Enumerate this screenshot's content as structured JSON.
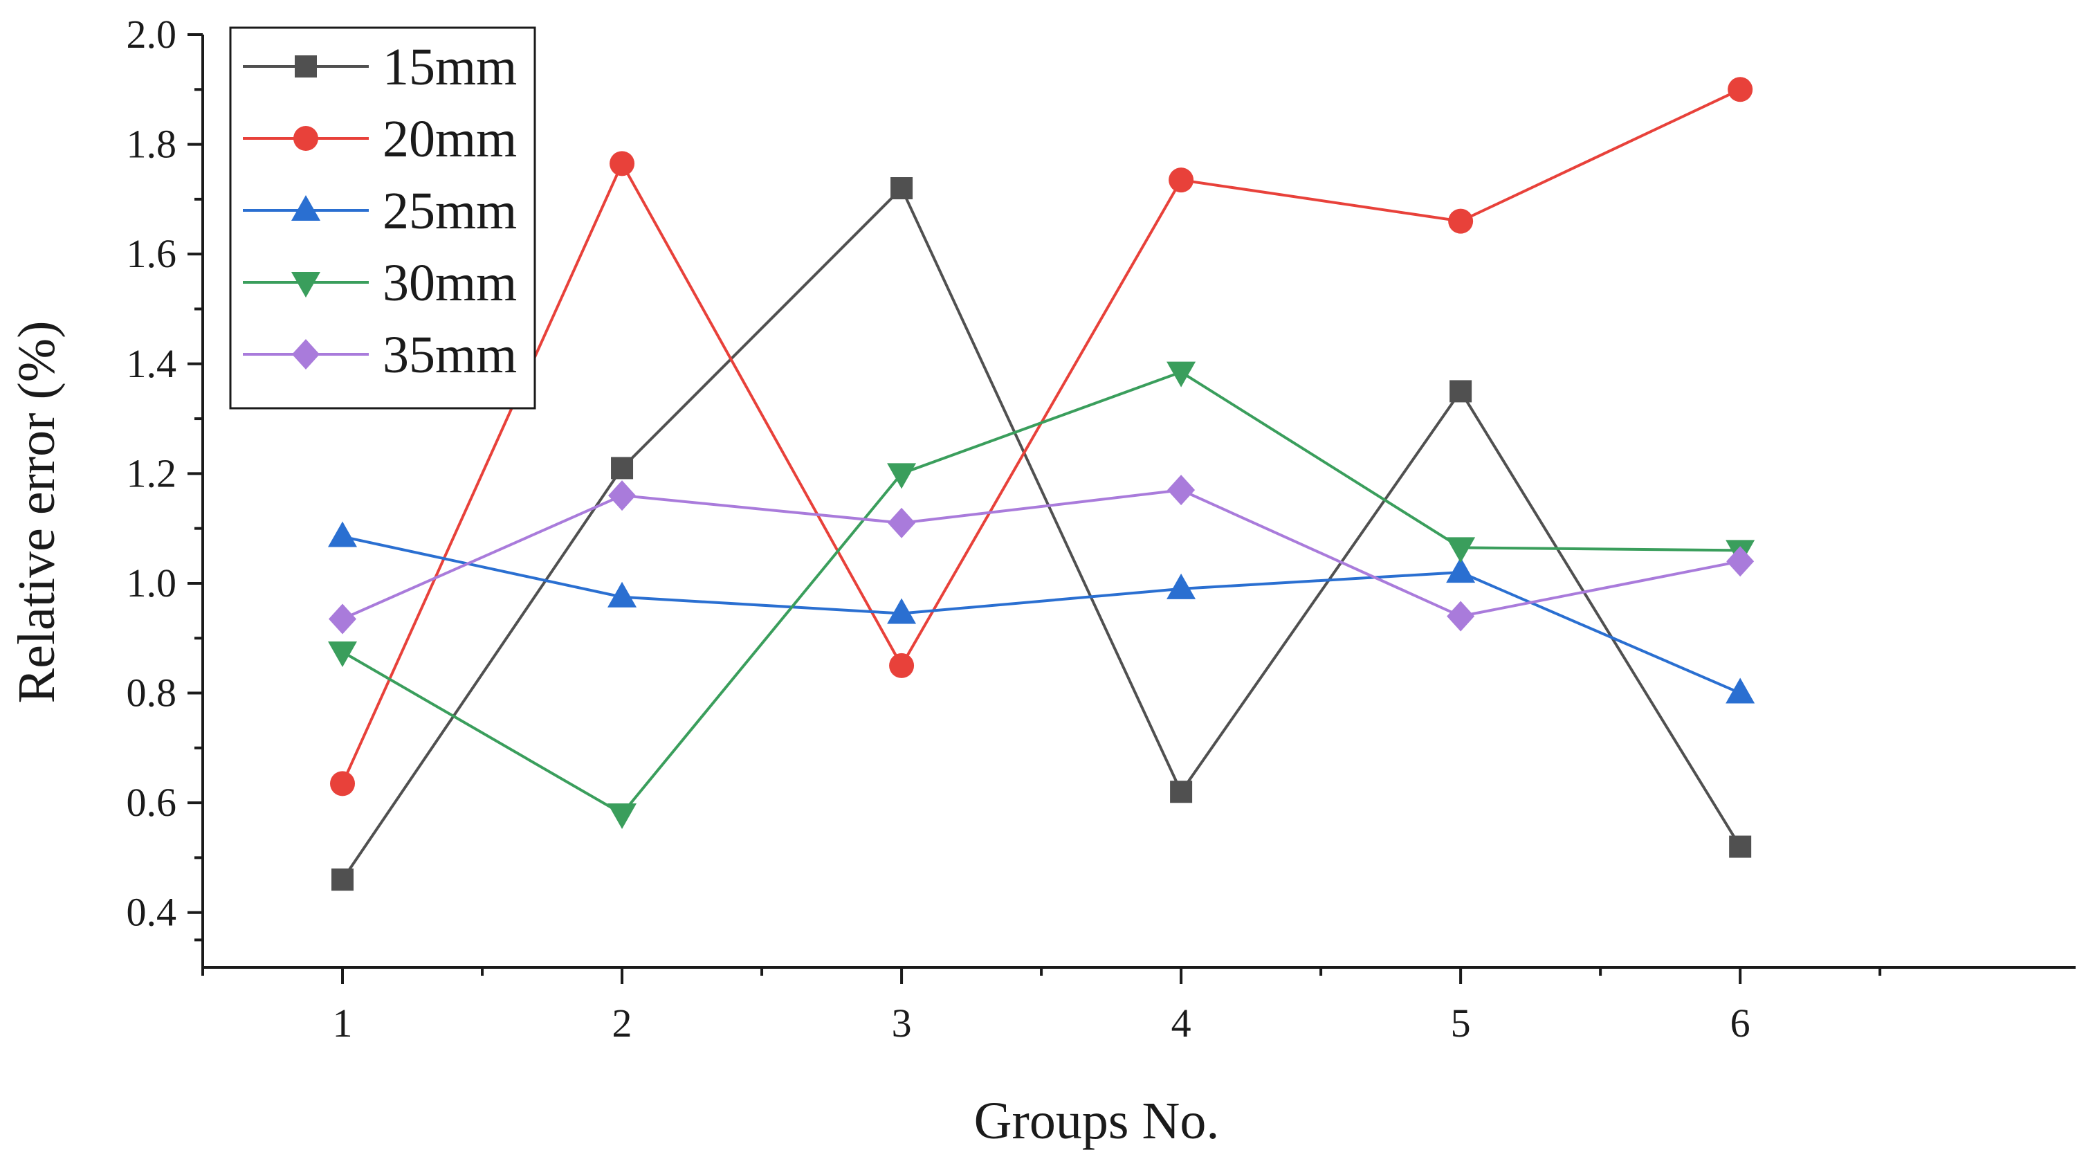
{
  "chart_data": {
    "type": "line",
    "title": "",
    "xlabel": "Groups No.",
    "ylabel": "Relative error (%)",
    "x": [
      1,
      2,
      3,
      4,
      5,
      6
    ],
    "x_tick_labels": [
      "1",
      "2",
      "3",
      "4",
      "5",
      "6"
    ],
    "xlim": [
      0.5,
      7.2
    ],
    "ylim": [
      0.3,
      2.0
    ],
    "y_ticks": [
      0.4,
      0.6,
      0.8,
      1.0,
      1.2,
      1.4,
      1.6,
      1.8,
      2.0
    ],
    "y_tick_labels": [
      "0.4",
      "0.6",
      "0.8",
      "1.0",
      "1.2",
      "1.4",
      "1.6",
      "1.8",
      "2.0"
    ],
    "grid": false,
    "legend_position": "top-left",
    "series": [
      {
        "name": "15mm",
        "marker": "square",
        "color": "#505050",
        "values": [
          0.46,
          1.21,
          1.72,
          0.62,
          1.35,
          0.52
        ]
      },
      {
        "name": "20mm",
        "marker": "circle",
        "color": "#e8413a",
        "values": [
          0.635,
          1.765,
          0.85,
          1.735,
          1.66,
          1.9
        ]
      },
      {
        "name": "25mm",
        "marker": "triangle-up",
        "color": "#2a6fd1",
        "values": [
          1.085,
          0.975,
          0.945,
          0.99,
          1.02,
          0.8
        ]
      },
      {
        "name": "30mm",
        "marker": "triangle-down",
        "color": "#3a9e5c",
        "values": [
          0.875,
          0.58,
          1.2,
          1.385,
          1.065,
          1.06
        ]
      },
      {
        "name": "35mm",
        "marker": "diamond",
        "color": "#a97bdb",
        "values": [
          0.935,
          1.16,
          1.11,
          1.17,
          0.94,
          1.04
        ]
      }
    ]
  }
}
